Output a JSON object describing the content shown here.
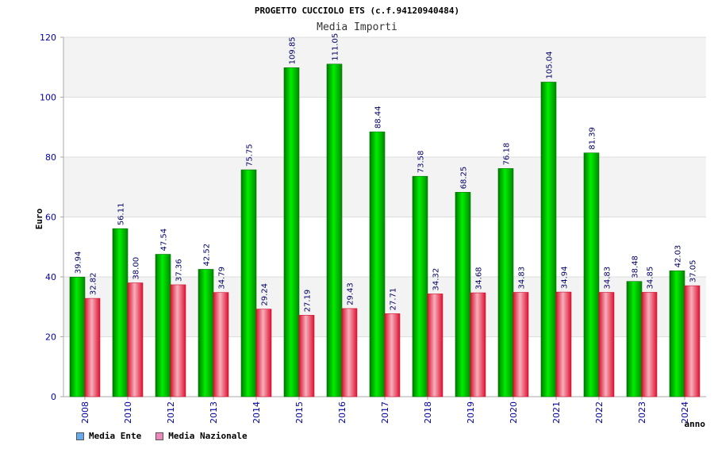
{
  "chart_data": {
    "type": "bar",
    "title": "PROGETTO CUCCIOLO ETS (c.f.94120940484)",
    "subtitle": "Media Importi",
    "xlabel": "anno",
    "ylabel": "Euro",
    "ylim": [
      0,
      120
    ],
    "yticks": [
      "0",
      "20",
      "40",
      "60",
      "80",
      "100",
      "120"
    ],
    "categories": [
      "2008",
      "2010",
      "2012",
      "2013",
      "2014",
      "2015",
      "2016",
      "2017",
      "2018",
      "2019",
      "2020",
      "2021",
      "2022",
      "2023",
      "2024"
    ],
    "series": [
      {
        "name": "Media Ente",
        "color": "#00bb00",
        "values": [
          39.94,
          56.11,
          47.54,
          42.52,
          75.75,
          109.85,
          111.05,
          88.44,
          73.58,
          68.25,
          76.18,
          105.04,
          81.39,
          38.48,
          42.03
        ],
        "labels": [
          "39.94",
          "56.11",
          "47.54",
          "42.52",
          "75.75",
          "109.85",
          "111.05",
          "88.44",
          "73.58",
          "68.25",
          "76.18",
          "105.04",
          "81.39",
          "38.48",
          "42.03"
        ]
      },
      {
        "name": "Media Nazionale",
        "color": "#e8505a",
        "values": [
          32.82,
          38.0,
          37.36,
          34.79,
          29.24,
          27.19,
          29.43,
          27.71,
          34.32,
          34.68,
          34.83,
          34.94,
          34.83,
          34.85,
          37.05
        ],
        "labels": [
          "32.82",
          "38.00",
          "37.36",
          "34.79",
          "29.24",
          "27.19",
          "29.43",
          "27.71",
          "34.32",
          "34.68",
          "34.83",
          "34.94",
          "34.83",
          "34.85",
          "37.05"
        ]
      }
    ],
    "grid": true,
    "legend_position": "bottom-left"
  },
  "legend": {
    "ente_label": "Media Ente",
    "ente_color": "#66aaee",
    "nazionale_label": "Media Nazionale",
    "nazionale_color": "#ee88bb"
  }
}
